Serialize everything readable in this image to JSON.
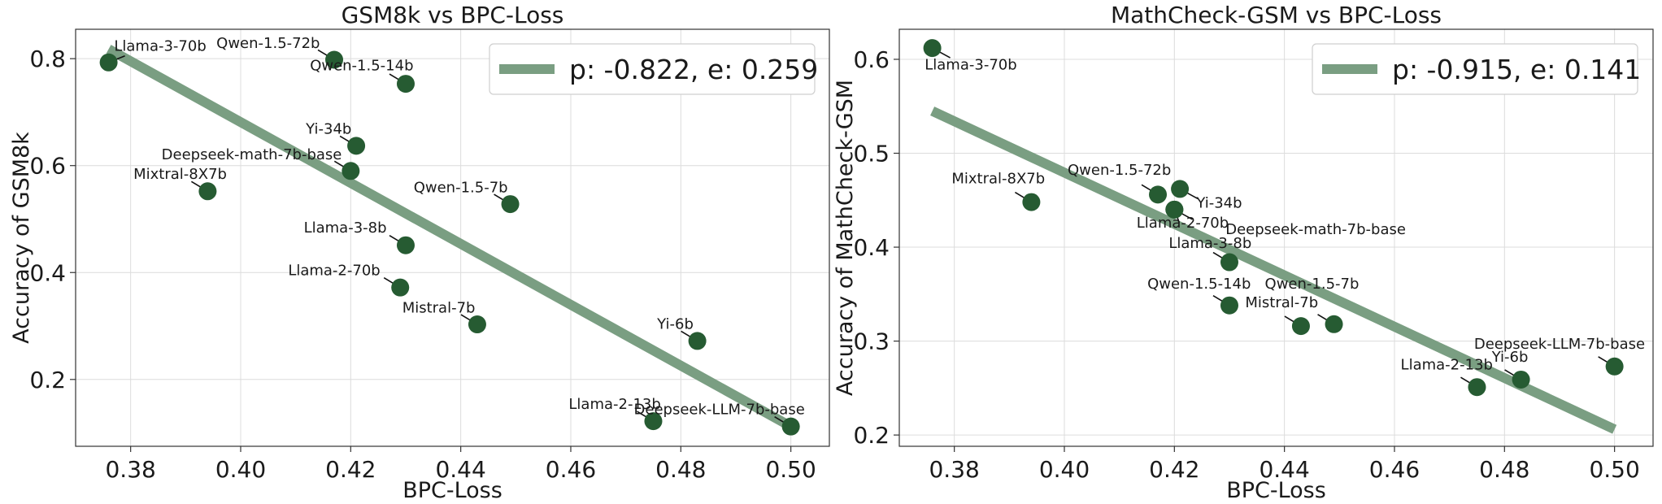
{
  "colors": {
    "point": "#265b32",
    "fit_line": "#7a9e82",
    "leader": "#111111"
  },
  "chart_data": [
    {
      "type": "scatter",
      "title": "GSM8k vs BPC-Loss",
      "xlabel": "BPC-Loss",
      "ylabel": "Accuracy of GSM8k",
      "xlim": [
        0.37,
        0.507
      ],
      "ylim": [
        0.075,
        0.855
      ],
      "xticks": [
        0.38,
        0.4,
        0.42,
        0.44,
        0.46,
        0.48,
        0.5
      ],
      "xtick_labels": [
        "0.38",
        "0.40",
        "0.42",
        "0.44",
        "0.46",
        "0.48",
        "0.50"
      ],
      "yticks": [
        0.2,
        0.4,
        0.6,
        0.8
      ],
      "ytick_labels": [
        "0.2",
        "0.4",
        "0.6",
        "0.8"
      ],
      "grid": true,
      "legend": {
        "location": "top-right",
        "label": "p: -0.822, e: 0.259"
      },
      "fit_line": {
        "x": [
          0.376,
          0.5
        ],
        "y": [
          0.818,
          0.112
        ]
      },
      "points": [
        {
          "label": "Llama-3-70b",
          "x": 0.376,
          "y": 0.793,
          "lx": 0.377,
          "ly": 0.815,
          "anchor": "start",
          "dir": "ur"
        },
        {
          "label": "Qwen-1.5-72b",
          "x": 0.417,
          "y": 0.798,
          "lx": 0.405,
          "ly": 0.82,
          "anchor": "middle",
          "dir": "ul"
        },
        {
          "label": "Qwen-1.5-14b",
          "x": 0.43,
          "y": 0.753,
          "lx": 0.422,
          "ly": 0.778,
          "anchor": "middle",
          "dir": "ul"
        },
        {
          "label": "Yi-34b",
          "x": 0.421,
          "y": 0.637,
          "lx": 0.416,
          "ly": 0.66,
          "anchor": "middle",
          "dir": "ul"
        },
        {
          "label": "Deepseek-math-7b-base",
          "x": 0.42,
          "y": 0.59,
          "lx": 0.402,
          "ly": 0.612,
          "anchor": "middle",
          "dir": "ul"
        },
        {
          "label": "Mixtral-8X7b",
          "x": 0.394,
          "y": 0.552,
          "lx": 0.389,
          "ly": 0.575,
          "anchor": "middle",
          "dir": "ul"
        },
        {
          "label": "Qwen-1.5-7b",
          "x": 0.449,
          "y": 0.528,
          "lx": 0.44,
          "ly": 0.55,
          "anchor": "middle",
          "dir": "ul"
        },
        {
          "label": "Llama-3-8b",
          "x": 0.43,
          "y": 0.451,
          "lx": 0.419,
          "ly": 0.475,
          "anchor": "middle",
          "dir": "ul"
        },
        {
          "label": "Llama-2-70b",
          "x": 0.429,
          "y": 0.372,
          "lx": 0.417,
          "ly": 0.395,
          "anchor": "middle",
          "dir": "ul"
        },
        {
          "label": "Mistral-7b",
          "x": 0.443,
          "y": 0.303,
          "lx": 0.436,
          "ly": 0.325,
          "anchor": "middle",
          "dir": "ul"
        },
        {
          "label": "Yi-6b",
          "x": 0.483,
          "y": 0.272,
          "lx": 0.479,
          "ly": 0.295,
          "anchor": "middle",
          "dir": "ul"
        },
        {
          "label": "Llama-2-13b",
          "x": 0.475,
          "y": 0.122,
          "lx": 0.468,
          "ly": 0.145,
          "anchor": "middle",
          "dir": "ul"
        },
        {
          "label": "Deepseek-LLM-7b-base",
          "x": 0.5,
          "y": 0.112,
          "lx": 0.487,
          "ly": 0.135,
          "anchor": "middle",
          "dir": "ul"
        }
      ]
    },
    {
      "type": "scatter",
      "title": "MathCheck-GSM vs BPC-Loss",
      "xlabel": "BPC-Loss",
      "ylabel": "Accuracy of MathCheck-GSM",
      "xlim": [
        0.37,
        0.507
      ],
      "ylim": [
        0.188,
        0.632
      ],
      "xticks": [
        0.38,
        0.4,
        0.42,
        0.44,
        0.46,
        0.48,
        0.5
      ],
      "xtick_labels": [
        "0.38",
        "0.40",
        "0.42",
        "0.44",
        "0.46",
        "0.48",
        "0.50"
      ],
      "yticks": [
        0.2,
        0.3,
        0.4,
        0.5,
        0.6
      ],
      "ytick_labels": [
        "0.2",
        "0.3",
        "0.4",
        "0.5",
        "0.6"
      ],
      "grid": true,
      "legend": {
        "location": "top-right",
        "label": "p: -0.915, e: 0.141"
      },
      "fit_line": {
        "x": [
          0.376,
          0.5
        ],
        "y": [
          0.545,
          0.206
        ]
      },
      "points": [
        {
          "label": "Llama-3-70b",
          "x": 0.376,
          "y": 0.612,
          "lx": 0.383,
          "ly": 0.589,
          "anchor": "middle",
          "dir": "dr"
        },
        {
          "label": "Mixtral-8X7b",
          "x": 0.394,
          "y": 0.448,
          "lx": 0.388,
          "ly": 0.468,
          "anchor": "middle",
          "dir": "ul"
        },
        {
          "label": "Qwen-1.5-72b",
          "x": 0.417,
          "y": 0.456,
          "lx": 0.41,
          "ly": 0.477,
          "anchor": "middle",
          "dir": "ul"
        },
        {
          "label": "Yi-34b",
          "x": 0.421,
          "y": 0.462,
          "lx": 0.424,
          "ly": 0.442,
          "anchor": "start",
          "dir": "dr"
        },
        {
          "label": "Llama-2-70b",
          "x": 0.42,
          "y": 0.44,
          "lx": 0.4215,
          "ly": 0.421,
          "anchor": "middle",
          "dir": "d"
        },
        {
          "label": "Deepseek-math-7b-base",
          "x": 0.42,
          "y": 0.44,
          "lx": 0.4293,
          "ly": 0.414,
          "anchor": "start",
          "dir": "dr"
        },
        {
          "label": "Llama-3-8b",
          "x": 0.43,
          "y": 0.384,
          "lx": 0.4265,
          "ly": 0.399,
          "anchor": "middle",
          "dir": "ul"
        },
        {
          "label": "Qwen-1.5-14b",
          "x": 0.43,
          "y": 0.338,
          "lx": 0.4245,
          "ly": 0.356,
          "anchor": "middle",
          "dir": "ul"
        },
        {
          "label": "Qwen-1.5-7b",
          "x": 0.449,
          "y": 0.318,
          "lx": 0.445,
          "ly": 0.356,
          "anchor": "middle",
          "dir": "ul"
        },
        {
          "label": "Mistral-7b",
          "x": 0.443,
          "y": 0.316,
          "lx": 0.4395,
          "ly": 0.336,
          "anchor": "middle",
          "dir": "ul"
        },
        {
          "label": "Deepseek-LLM-7b-base",
          "x": 0.5,
          "y": 0.273,
          "lx": 0.49,
          "ly": 0.292,
          "anchor": "middle",
          "dir": "ul"
        },
        {
          "label": "Yi-6b",
          "x": 0.483,
          "y": 0.259,
          "lx": 0.481,
          "ly": 0.278,
          "anchor": "middle",
          "dir": "ul"
        },
        {
          "label": "Llama-2-13b",
          "x": 0.475,
          "y": 0.251,
          "lx": 0.4695,
          "ly": 0.27,
          "anchor": "middle",
          "dir": "ul"
        }
      ]
    }
  ]
}
